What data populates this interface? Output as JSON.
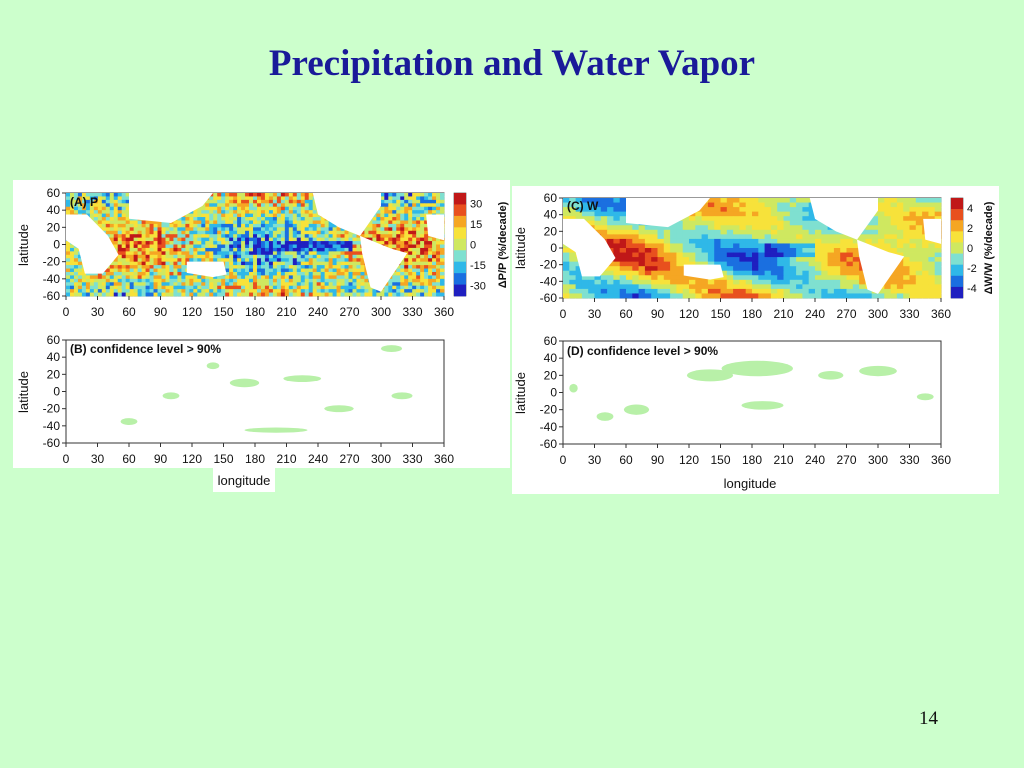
{
  "slide": {
    "title": "Precipitation and Water Vapor",
    "number": "14"
  },
  "figures": {
    "left": {
      "panel_a": {
        "label": "(A) P",
        "colorbar_label": "ΔP/P (%/decade)",
        "colorbar_ticks": [
          "30",
          "15",
          "0",
          "-15",
          "-30"
        ]
      },
      "panel_b": {
        "label": "(B) confidence level > 90%"
      }
    },
    "right": {
      "panel_c": {
        "label": "(C) W",
        "colorbar_label": "ΔW/W (%/decade)",
        "colorbar_ticks": [
          "4",
          "2",
          "0",
          "-2",
          "-4"
        ]
      },
      "panel_d": {
        "label": "(D) confidence level > 90%"
      }
    },
    "ylabel": "latitude",
    "xlabel": "longitude",
    "lat_ticks": [
      "60",
      "40",
      "20",
      "0",
      "-20",
      "-40",
      "-60"
    ],
    "lon_ticks": [
      "0",
      "30",
      "60",
      "90",
      "120",
      "150",
      "180",
      "210",
      "240",
      "270",
      "300",
      "330",
      "360"
    ]
  },
  "colors": {
    "background": "#ccffcc",
    "title": "#1a1a99",
    "significance": "#b8f0a8"
  }
}
